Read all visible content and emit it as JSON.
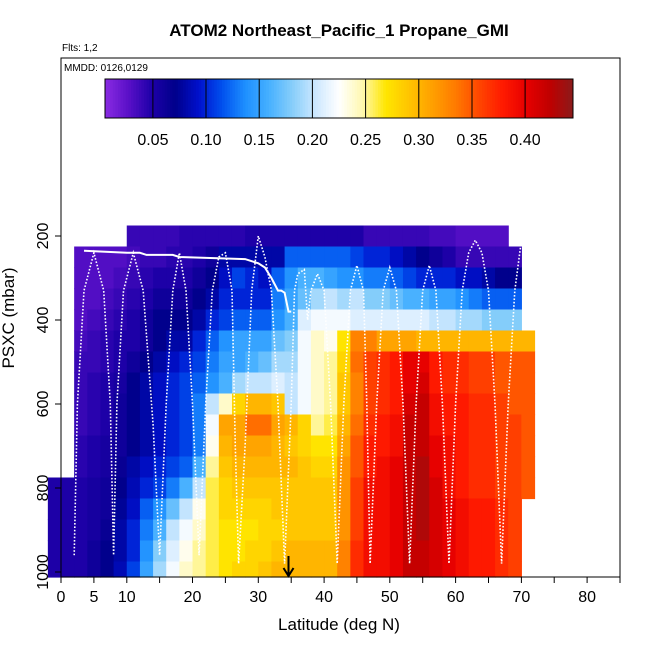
{
  "chart_data": {
    "type": "heatmap",
    "title": "ATOM2 Northeast_Pacific_1 Propane_GMI",
    "annotations": [
      "Flts: 1,2",
      "MMDD: 0126,0129"
    ],
    "xlabel": "Latitude (deg N)",
    "ylabel": "PSXC (mbar)",
    "xlim": [
      0,
      85
    ],
    "ylim": [
      1000,
      0
    ],
    "x_ticks": [
      0,
      5,
      10,
      20,
      30,
      40,
      50,
      60,
      70,
      80
    ],
    "y_ticks": [
      200,
      400,
      600,
      800,
      1000
    ],
    "colorbar": {
      "ticks": [
        "0.05",
        "0.10",
        "0.15",
        "0.20",
        "0.25",
        "0.30",
        "0.35",
        "0.40"
      ],
      "tick_values": [
        0.05,
        0.1,
        0.15,
        0.2,
        0.25,
        0.3,
        0.35,
        0.4
      ],
      "range": [
        0.005,
        0.445
      ],
      "colors": [
        "#8a2be2",
        "#5a10c8",
        "#1e00a8",
        "#00008b",
        "#0010cc",
        "#0050ee",
        "#1e90ff",
        "#46b0ff",
        "#87cefa",
        "#cde8ff",
        "#ffffff",
        "#fff8b0",
        "#ffe600",
        "#ffc400",
        "#ff9f00",
        "#ff7a00",
        "#ff4500",
        "#ff1a00",
        "#e60000",
        "#c00000",
        "#8b1a1a"
      ]
    },
    "marker": {
      "type": "arrow",
      "x": 34.6,
      "y": 1000
    },
    "latitude_bins": [
      [
        -2,
        2
      ],
      [
        2,
        4
      ],
      [
        4,
        6
      ],
      [
        6,
        8
      ],
      [
        8,
        10
      ],
      [
        10,
        12
      ],
      [
        12,
        14
      ],
      [
        14,
        16
      ],
      [
        16,
        18
      ],
      [
        18,
        20
      ],
      [
        20,
        22
      ],
      [
        22,
        24
      ],
      [
        24,
        26
      ],
      [
        26,
        28
      ],
      [
        28,
        30
      ],
      [
        30,
        32
      ],
      [
        32,
        34
      ],
      [
        34,
        36
      ],
      [
        36,
        38
      ],
      [
        38,
        40
      ],
      [
        40,
        42
      ],
      [
        42,
        44
      ],
      [
        44,
        46
      ],
      [
        46,
        48
      ],
      [
        48,
        50
      ],
      [
        50,
        52
      ],
      [
        52,
        54
      ],
      [
        54,
        56
      ],
      [
        56,
        58
      ],
      [
        58,
        60
      ],
      [
        60,
        62
      ],
      [
        62,
        64
      ],
      [
        64,
        66
      ],
      [
        66,
        68
      ],
      [
        68,
        70
      ],
      [
        70,
        72
      ]
    ],
    "pressure_levels": [
      100,
      150,
      200,
      250,
      300,
      350,
      400,
      450,
      500,
      550,
      600,
      650,
      700,
      750,
      800,
      850,
      900,
      950,
      1000
    ],
    "values": [
      [
        null,
        null,
        null,
        null,
        null,
        null,
        null,
        null,
        null,
        null,
        null,
        null,
        null,
        null,
        null,
        null,
        null,
        null,
        null,
        null,
        null,
        null,
        null,
        null,
        null,
        null,
        null,
        null,
        null,
        null,
        null,
        null,
        null,
        null,
        null,
        null
      ],
      [
        null,
        null,
        null,
        null,
        null,
        null,
        null,
        null,
        null,
        null,
        null,
        null,
        null,
        null,
        null,
        null,
        null,
        null,
        null,
        null,
        null,
        null,
        null,
        null,
        null,
        null,
        null,
        null,
        null,
        null,
        null,
        null,
        null,
        null,
        null,
        null
      ],
      [
        null,
        null,
        null,
        null,
        null,
        0.04,
        0.04,
        0.04,
        0.04,
        0.045,
        0.045,
        0.045,
        0.045,
        0.045,
        0.05,
        0.05,
        0.05,
        0.05,
        0.05,
        0.05,
        0.05,
        0.05,
        0.05,
        0.04,
        0.04,
        0.04,
        0.04,
        0.04,
        0.035,
        0.035,
        0.03,
        0.03,
        0.03,
        0.03,
        null,
        null
      ],
      [
        null,
        0.03,
        0.03,
        0.03,
        0.03,
        0.035,
        0.04,
        0.04,
        0.045,
        0.045,
        0.05,
        0.06,
        0.08,
        0.08,
        0.08,
        0.08,
        0.08,
        0.12,
        0.12,
        0.12,
        0.12,
        0.12,
        0.11,
        0.1,
        0.1,
        0.09,
        0.08,
        0.07,
        0.06,
        0.05,
        0.04,
        0.04,
        0.04,
        0.04,
        0.04,
        null
      ],
      [
        null,
        0.03,
        0.03,
        0.03,
        0.035,
        0.04,
        0.045,
        0.05,
        0.05,
        0.05,
        0.06,
        0.07,
        0.09,
        0.11,
        0.1,
        0.09,
        0.12,
        0.14,
        0.16,
        0.16,
        0.15,
        0.14,
        0.14,
        0.13,
        0.13,
        0.12,
        0.11,
        0.1,
        0.1,
        0.1,
        0.09,
        0.09,
        0.08,
        0.07,
        0.07,
        null
      ],
      [
        null,
        0.03,
        0.03,
        0.035,
        0.04,
        0.045,
        0.05,
        0.06,
        0.06,
        0.06,
        0.07,
        0.08,
        0.1,
        0.1,
        0.1,
        0.1,
        0.13,
        0.15,
        0.17,
        0.19,
        0.2,
        0.19,
        0.2,
        0.18,
        0.18,
        0.17,
        0.16,
        0.16,
        0.15,
        0.15,
        0.14,
        0.13,
        0.12,
        0.12,
        0.12,
        null
      ],
      [
        null,
        0.03,
        0.035,
        0.04,
        0.045,
        0.05,
        0.06,
        0.07,
        0.07,
        0.07,
        0.08,
        0.1,
        0.11,
        0.12,
        0.12,
        0.12,
        0.14,
        0.16,
        0.21,
        0.22,
        0.22,
        0.22,
        0.21,
        0.21,
        0.21,
        0.21,
        0.21,
        0.21,
        0.2,
        0.2,
        0.19,
        0.19,
        0.18,
        0.18,
        0.18,
        null
      ],
      [
        null,
        0.035,
        0.04,
        0.045,
        0.05,
        0.05,
        0.06,
        0.07,
        0.08,
        0.08,
        0.1,
        0.12,
        0.14,
        0.15,
        0.15,
        0.15,
        0.17,
        0.18,
        0.22,
        0.24,
        0.23,
        0.27,
        0.33,
        0.33,
        0.31,
        0.31,
        0.31,
        0.3,
        0.3,
        0.3,
        0.3,
        0.3,
        0.3,
        0.3,
        0.3,
        0.3
      ],
      [
        null,
        0.04,
        0.04,
        0.045,
        0.05,
        0.06,
        0.07,
        0.08,
        0.09,
        0.1,
        0.11,
        0.13,
        0.15,
        0.15,
        0.16,
        0.17,
        0.19,
        0.19,
        0.22,
        0.24,
        0.25,
        0.28,
        0.34,
        0.36,
        0.37,
        0.38,
        0.4,
        0.4,
        0.38,
        0.37,
        0.37,
        0.36,
        0.36,
        0.35,
        0.35,
        0.35
      ],
      [
        null,
        0.04,
        0.045,
        0.05,
        0.055,
        0.07,
        0.08,
        0.09,
        0.1,
        0.11,
        0.12,
        0.14,
        0.16,
        0.19,
        0.2,
        0.2,
        0.21,
        0.2,
        0.22,
        0.24,
        0.25,
        0.29,
        0.33,
        0.36,
        0.37,
        0.38,
        0.4,
        0.41,
        0.38,
        0.37,
        0.37,
        0.36,
        0.36,
        0.35,
        0.35,
        0.35
      ],
      [
        null,
        0.04,
        0.045,
        0.05,
        0.06,
        0.07,
        0.08,
        0.09,
        0.1,
        0.11,
        0.13,
        0.2,
        0.24,
        0.28,
        0.3,
        0.3,
        0.29,
        0.2,
        0.22,
        0.24,
        0.25,
        0.29,
        0.33,
        0.36,
        0.37,
        0.38,
        0.41,
        0.42,
        0.39,
        0.38,
        0.38,
        0.37,
        0.37,
        0.36,
        0.35,
        0.35
      ],
      [
        null,
        0.04,
        0.045,
        0.05,
        0.06,
        0.07,
        0.08,
        0.09,
        0.1,
        0.11,
        0.13,
        0.22,
        0.31,
        0.31,
        0.34,
        0.34,
        0.31,
        0.3,
        0.28,
        0.25,
        0.26,
        0.3,
        0.34,
        0.37,
        0.38,
        0.39,
        0.42,
        0.42,
        0.39,
        0.38,
        0.38,
        0.37,
        0.37,
        0.36,
        0.36,
        0.35
      ],
      [
        null,
        0.045,
        0.05,
        0.055,
        0.06,
        0.07,
        0.08,
        0.09,
        0.1,
        0.11,
        0.13,
        0.23,
        0.3,
        0.31,
        0.31,
        0.31,
        0.3,
        0.29,
        0.28,
        0.27,
        0.27,
        0.31,
        0.35,
        0.38,
        0.38,
        0.39,
        0.42,
        0.42,
        0.4,
        0.39,
        0.38,
        0.37,
        0.37,
        0.36,
        0.36,
        0.35
      ],
      [
        null,
        0.045,
        0.05,
        0.055,
        0.065,
        0.08,
        0.09,
        0.1,
        0.11,
        0.12,
        0.16,
        0.25,
        0.29,
        0.3,
        0.3,
        0.3,
        0.3,
        0.3,
        0.29,
        0.28,
        0.28,
        0.32,
        0.35,
        0.38,
        0.39,
        0.4,
        0.42,
        0.43,
        0.4,
        0.39,
        0.38,
        0.37,
        0.37,
        0.36,
        0.36,
        0.35
      ],
      [
        0.05,
        0.05,
        0.055,
        0.06,
        0.07,
        0.085,
        0.1,
        0.11,
        0.13,
        0.16,
        0.2,
        0.26,
        0.28,
        0.29,
        0.29,
        0.29,
        0.29,
        0.29,
        0.29,
        0.29,
        0.29,
        0.32,
        0.36,
        0.39,
        0.39,
        0.4,
        0.42,
        0.43,
        0.41,
        0.39,
        0.38,
        0.37,
        0.37,
        0.36,
        0.36,
        0.35
      ],
      [
        0.05,
        0.05,
        0.055,
        0.06,
        0.075,
        0.09,
        0.12,
        0.14,
        0.17,
        0.2,
        0.23,
        0.26,
        0.28,
        0.28,
        0.28,
        0.28,
        0.29,
        0.29,
        0.29,
        0.29,
        0.29,
        0.32,
        0.36,
        0.39,
        0.39,
        0.4,
        0.42,
        0.43,
        0.41,
        0.4,
        0.39,
        0.38,
        0.38,
        0.37,
        0.36,
        null
      ],
      [
        0.05,
        0.05,
        0.055,
        0.065,
        0.08,
        0.1,
        0.13,
        0.16,
        0.2,
        0.22,
        0.24,
        0.26,
        0.27,
        0.27,
        0.27,
        0.28,
        0.28,
        0.29,
        0.29,
        0.29,
        0.29,
        0.32,
        0.36,
        0.39,
        0.39,
        0.4,
        0.42,
        0.43,
        0.41,
        0.4,
        0.39,
        0.38,
        0.38,
        0.37,
        0.36,
        null
      ],
      [
        0.05,
        0.05,
        0.06,
        0.07,
        0.08,
        0.1,
        0.14,
        0.18,
        0.21,
        0.23,
        0.25,
        0.26,
        0.27,
        0.27,
        0.28,
        0.28,
        0.29,
        0.3,
        0.3,
        0.3,
        0.3,
        0.33,
        0.37,
        0.39,
        0.39,
        0.4,
        0.42,
        0.42,
        0.41,
        0.4,
        0.39,
        0.38,
        0.38,
        0.37,
        0.36,
        null
      ],
      [
        0.05,
        0.05,
        0.06,
        0.07,
        0.085,
        0.11,
        0.15,
        0.19,
        0.22,
        0.24,
        0.25,
        0.26,
        0.27,
        0.28,
        0.28,
        0.29,
        0.3,
        0.3,
        0.3,
        0.3,
        0.3,
        0.33,
        0.37,
        0.39,
        0.39,
        0.4,
        0.42,
        0.42,
        0.41,
        0.4,
        0.39,
        0.38,
        0.38,
        0.37,
        0.36,
        null
      ]
    ],
    "flight_track": [
      [
        2,
        960
      ],
      [
        2.5,
        600
      ],
      [
        3.5,
        330
      ],
      [
        5,
        240
      ],
      [
        6.5,
        330
      ],
      [
        7.5,
        600
      ],
      [
        8,
        960
      ],
      [
        8.5,
        600
      ],
      [
        9.5,
        330
      ],
      [
        11,
        240
      ],
      [
        12.5,
        330
      ],
      [
        14,
        650
      ],
      [
        15,
        960
      ],
      [
        16,
        600
      ],
      [
        17,
        330
      ],
      [
        18,
        240
      ],
      [
        19,
        330
      ],
      [
        20,
        600
      ],
      [
        21,
        960
      ],
      [
        22,
        600
      ],
      [
        23,
        330
      ],
      [
        24,
        250
      ],
      [
        25,
        240
      ],
      [
        26,
        330
      ],
      [
        26.5,
        700
      ],
      [
        27,
        980
      ],
      [
        28,
        700
      ],
      [
        29,
        330
      ],
      [
        30,
        200
      ],
      [
        31,
        250
      ],
      [
        32,
        330
      ],
      [
        33,
        600
      ],
      [
        34,
        980
      ],
      [
        35,
        600
      ],
      [
        35.5,
        330
      ],
      [
        36,
        290
      ],
      [
        37,
        280
      ],
      [
        37.5,
        400
      ],
      [
        38,
        330
      ],
      [
        39,
        290
      ],
      [
        40,
        330
      ],
      [
        41,
        600
      ],
      [
        42,
        980
      ],
      [
        43,
        600
      ],
      [
        44,
        330
      ],
      [
        45,
        270
      ],
      [
        46,
        330
      ],
      [
        46.5,
        600
      ],
      [
        47,
        980
      ],
      [
        48,
        600
      ],
      [
        49,
        330
      ],
      [
        50,
        275
      ],
      [
        51,
        330
      ],
      [
        52,
        600
      ],
      [
        53,
        980
      ],
      [
        54,
        600
      ],
      [
        55,
        330
      ],
      [
        56,
        270
      ],
      [
        57,
        330
      ],
      [
        58,
        600
      ],
      [
        59,
        980
      ],
      [
        60,
        600
      ],
      [
        61,
        330
      ],
      [
        62,
        240
      ],
      [
        63,
        210
      ],
      [
        64,
        240
      ],
      [
        65,
        330
      ],
      [
        66,
        600
      ],
      [
        67,
        980
      ],
      [
        68,
        600
      ],
      [
        69,
        330
      ],
      [
        70,
        210
      ]
    ],
    "flight_track_upper": [
      [
        3.5,
        235
      ],
      [
        10,
        240
      ],
      [
        12,
        240
      ],
      [
        13,
        245
      ],
      [
        17,
        245
      ],
      [
        18,
        250
      ],
      [
        28,
        255
      ],
      [
        29,
        260
      ],
      [
        30,
        265
      ],
      [
        31,
        275
      ],
      [
        32,
        300
      ],
      [
        33,
        330
      ],
      [
        33.5,
        330
      ],
      [
        34,
        335
      ],
      [
        34.6,
        380
      ],
      [
        35,
        380
      ]
    ]
  }
}
